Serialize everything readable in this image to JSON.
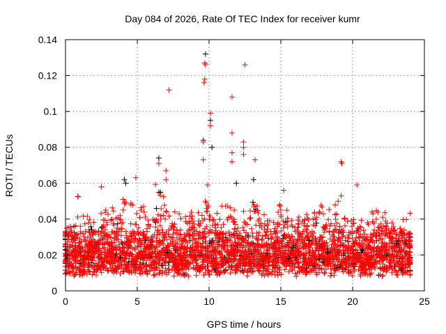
{
  "chart_data": {
    "type": "scatter",
    "title": "Day 084 of 2026, Rate Of TEC Index for receiver kumr",
    "xlabel": "GPS time / hours",
    "ylabel": "ROTI / TECUs",
    "xlim": [
      0,
      25
    ],
    "ylim": [
      0,
      0.14
    ],
    "xticks": [
      "0",
      "5",
      "10",
      "15",
      "20",
      "25"
    ],
    "yticks": [
      "0",
      "0.02",
      "0.04",
      "0.06",
      "0.08",
      "0.1",
      "0.12",
      "0.14"
    ],
    "grid": true,
    "marker": "+",
    "colors": {
      "primary": "#ff0000",
      "secondary": "#000000",
      "grid": "#a0a0a0"
    },
    "baseline_envelope": {
      "x_step_hours": 0.5,
      "y_min": 0.004,
      "typical_max": 0.03,
      "y_max": [
        0.035,
        0.04,
        0.054,
        0.045,
        0.04,
        0.045,
        0.048,
        0.05,
        0.055,
        0.05,
        0.05,
        0.048,
        0.05,
        0.06,
        0.055,
        0.045,
        0.045,
        0.042,
        0.045,
        0.05,
        0.05,
        0.04,
        0.048,
        0.05,
        0.048,
        0.045,
        0.05,
        0.048,
        0.045,
        0.042,
        0.05,
        0.045,
        0.04,
        0.042,
        0.045,
        0.048,
        0.05,
        0.048,
        0.05,
        0.045,
        0.04,
        0.04,
        0.042,
        0.045,
        0.045,
        0.038,
        0.035,
        0.035,
        0.032
      ]
    },
    "series": [
      {
        "name": "red outliers",
        "color": "#ff0000",
        "points": [
          [
            7.2,
            0.112
          ],
          [
            9.7,
            0.127
          ],
          [
            9.75,
            0.126
          ],
          [
            9.65,
            0.116
          ],
          [
            9.7,
            0.118
          ],
          [
            9.6,
            0.083
          ],
          [
            9.6,
            0.073
          ],
          [
            10.1,
            0.099
          ],
          [
            10.1,
            0.092
          ],
          [
            11.6,
            0.108
          ],
          [
            11.6,
            0.088
          ],
          [
            11.6,
            0.077
          ],
          [
            11.6,
            0.072
          ],
          [
            12.5,
            0.126
          ],
          [
            12.4,
            0.083
          ],
          [
            12.4,
            0.08
          ],
          [
            12.4,
            0.076
          ],
          [
            13.2,
            0.073
          ],
          [
            19.2,
            0.072
          ],
          [
            19.25,
            0.071
          ],
          [
            20.3,
            0.059
          ],
          [
            6.5,
            0.071
          ],
          [
            7.0,
            0.067
          ],
          [
            7.0,
            0.062
          ],
          [
            2.5,
            0.058
          ],
          [
            4.9,
            0.063
          ],
          [
            9.9,
            0.059
          ],
          [
            15.2,
            0.056
          ],
          [
            19.2,
            0.053
          ]
        ]
      },
      {
        "name": "black outliers",
        "color": "#000000",
        "points": [
          [
            9.75,
            0.132
          ],
          [
            10.1,
            0.095
          ],
          [
            10.2,
            0.08
          ],
          [
            6.5,
            0.074
          ],
          [
            11.9,
            0.06
          ],
          [
            13.1,
            0.062
          ],
          [
            4.1,
            0.062
          ],
          [
            9.6,
            0.084
          ],
          [
            4.2,
            0.06
          ],
          [
            6.6,
            0.055
          ]
        ]
      }
    ]
  }
}
